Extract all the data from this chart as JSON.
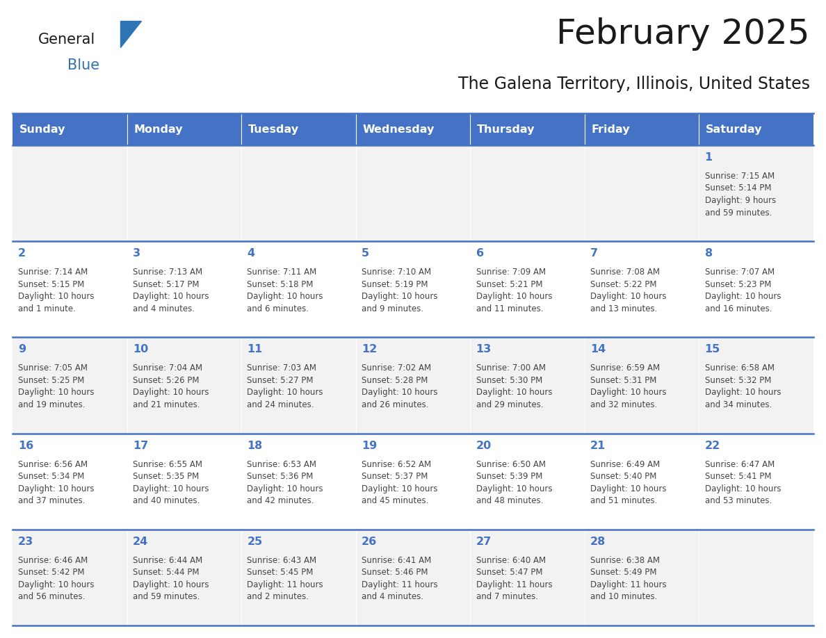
{
  "title": "February 2025",
  "subtitle": "The Galena Territory, Illinois, United States",
  "header_bg": "#4472C4",
  "header_text": "#FFFFFF",
  "days_of_week": [
    "Sunday",
    "Monday",
    "Tuesday",
    "Wednesday",
    "Thursday",
    "Friday",
    "Saturday"
  ],
  "row_bgs": [
    "#F2F2F2",
    "#FFFFFF",
    "#F2F2F2",
    "#FFFFFF",
    "#F2F2F2"
  ],
  "border_color": "#4472C4",
  "number_color": "#4472C4",
  "text_color": "#444444",
  "logo_general_color": "#1a1a1a",
  "logo_blue_color": "#2E74B5",
  "logo_triangle_color": "#2E74B5",
  "calendar": [
    [
      {
        "day": null,
        "info": null
      },
      {
        "day": null,
        "info": null
      },
      {
        "day": null,
        "info": null
      },
      {
        "day": null,
        "info": null
      },
      {
        "day": null,
        "info": null
      },
      {
        "day": null,
        "info": null
      },
      {
        "day": 1,
        "info": "Sunrise: 7:15 AM\nSunset: 5:14 PM\nDaylight: 9 hours\nand 59 minutes."
      }
    ],
    [
      {
        "day": 2,
        "info": "Sunrise: 7:14 AM\nSunset: 5:15 PM\nDaylight: 10 hours\nand 1 minute."
      },
      {
        "day": 3,
        "info": "Sunrise: 7:13 AM\nSunset: 5:17 PM\nDaylight: 10 hours\nand 4 minutes."
      },
      {
        "day": 4,
        "info": "Sunrise: 7:11 AM\nSunset: 5:18 PM\nDaylight: 10 hours\nand 6 minutes."
      },
      {
        "day": 5,
        "info": "Sunrise: 7:10 AM\nSunset: 5:19 PM\nDaylight: 10 hours\nand 9 minutes."
      },
      {
        "day": 6,
        "info": "Sunrise: 7:09 AM\nSunset: 5:21 PM\nDaylight: 10 hours\nand 11 minutes."
      },
      {
        "day": 7,
        "info": "Sunrise: 7:08 AM\nSunset: 5:22 PM\nDaylight: 10 hours\nand 13 minutes."
      },
      {
        "day": 8,
        "info": "Sunrise: 7:07 AM\nSunset: 5:23 PM\nDaylight: 10 hours\nand 16 minutes."
      }
    ],
    [
      {
        "day": 9,
        "info": "Sunrise: 7:05 AM\nSunset: 5:25 PM\nDaylight: 10 hours\nand 19 minutes."
      },
      {
        "day": 10,
        "info": "Sunrise: 7:04 AM\nSunset: 5:26 PM\nDaylight: 10 hours\nand 21 minutes."
      },
      {
        "day": 11,
        "info": "Sunrise: 7:03 AM\nSunset: 5:27 PM\nDaylight: 10 hours\nand 24 minutes."
      },
      {
        "day": 12,
        "info": "Sunrise: 7:02 AM\nSunset: 5:28 PM\nDaylight: 10 hours\nand 26 minutes."
      },
      {
        "day": 13,
        "info": "Sunrise: 7:00 AM\nSunset: 5:30 PM\nDaylight: 10 hours\nand 29 minutes."
      },
      {
        "day": 14,
        "info": "Sunrise: 6:59 AM\nSunset: 5:31 PM\nDaylight: 10 hours\nand 32 minutes."
      },
      {
        "day": 15,
        "info": "Sunrise: 6:58 AM\nSunset: 5:32 PM\nDaylight: 10 hours\nand 34 minutes."
      }
    ],
    [
      {
        "day": 16,
        "info": "Sunrise: 6:56 AM\nSunset: 5:34 PM\nDaylight: 10 hours\nand 37 minutes."
      },
      {
        "day": 17,
        "info": "Sunrise: 6:55 AM\nSunset: 5:35 PM\nDaylight: 10 hours\nand 40 minutes."
      },
      {
        "day": 18,
        "info": "Sunrise: 6:53 AM\nSunset: 5:36 PM\nDaylight: 10 hours\nand 42 minutes."
      },
      {
        "day": 19,
        "info": "Sunrise: 6:52 AM\nSunset: 5:37 PM\nDaylight: 10 hours\nand 45 minutes."
      },
      {
        "day": 20,
        "info": "Sunrise: 6:50 AM\nSunset: 5:39 PM\nDaylight: 10 hours\nand 48 minutes."
      },
      {
        "day": 21,
        "info": "Sunrise: 6:49 AM\nSunset: 5:40 PM\nDaylight: 10 hours\nand 51 minutes."
      },
      {
        "day": 22,
        "info": "Sunrise: 6:47 AM\nSunset: 5:41 PM\nDaylight: 10 hours\nand 53 minutes."
      }
    ],
    [
      {
        "day": 23,
        "info": "Sunrise: 6:46 AM\nSunset: 5:42 PM\nDaylight: 10 hours\nand 56 minutes."
      },
      {
        "day": 24,
        "info": "Sunrise: 6:44 AM\nSunset: 5:44 PM\nDaylight: 10 hours\nand 59 minutes."
      },
      {
        "day": 25,
        "info": "Sunrise: 6:43 AM\nSunset: 5:45 PM\nDaylight: 11 hours\nand 2 minutes."
      },
      {
        "day": 26,
        "info": "Sunrise: 6:41 AM\nSunset: 5:46 PM\nDaylight: 11 hours\nand 4 minutes."
      },
      {
        "day": 27,
        "info": "Sunrise: 6:40 AM\nSunset: 5:47 PM\nDaylight: 11 hours\nand 7 minutes."
      },
      {
        "day": 28,
        "info": "Sunrise: 6:38 AM\nSunset: 5:49 PM\nDaylight: 11 hours\nand 10 minutes."
      },
      {
        "day": null,
        "info": null
      }
    ]
  ]
}
